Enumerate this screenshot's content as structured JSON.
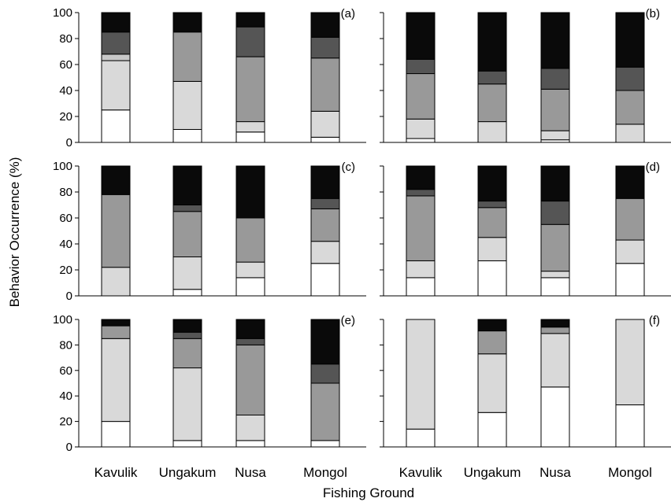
{
  "chart_data": {
    "type": "bar",
    "stacked": true,
    "xlabel": "Fishing Ground",
    "ylabel": "Behavior Occurrence (%)",
    "ylim": [
      0,
      100
    ],
    "yticks": [
      "0",
      "20",
      "40",
      "60",
      "80",
      "100"
    ],
    "categories": [
      "Kavulik",
      "Ungakum",
      "Nusa",
      "Mongol"
    ],
    "segment_colors": [
      "#ffffff",
      "#d9d9d9",
      "#c8c8c8",
      "#999999",
      "#555555",
      "#0a0a0a"
    ],
    "grid": false,
    "panels": [
      {
        "label": "(a)",
        "stacks": [
          [
            25,
            38,
            5,
            0,
            17,
            15
          ],
          [
            10,
            37,
            0,
            38,
            0,
            15
          ],
          [
            8,
            8,
            0,
            50,
            23,
            11
          ],
          [
            4,
            20,
            0,
            41,
            16,
            19
          ]
        ]
      },
      {
        "label": "(b)",
        "stacks": [
          [
            3,
            15,
            0,
            35,
            11,
            36
          ],
          [
            0,
            16,
            0,
            29,
            10,
            45
          ],
          [
            2,
            7,
            0,
            32,
            16,
            43
          ],
          [
            0,
            14,
            0,
            26,
            18,
            42
          ]
        ]
      },
      {
        "label": "(c)",
        "stacks": [
          [
            0,
            22,
            0,
            56,
            0,
            22
          ],
          [
            5,
            25,
            0,
            35,
            5,
            30
          ],
          [
            14,
            12,
            0,
            34,
            0,
            40
          ],
          [
            25,
            17,
            0,
            25,
            8,
            25
          ]
        ]
      },
      {
        "label": "(d)",
        "stacks": [
          [
            14,
            13,
            0,
            50,
            5,
            18
          ],
          [
            27,
            18,
            0,
            23,
            5,
            27
          ],
          [
            14,
            5,
            0,
            36,
            18,
            27
          ],
          [
            25,
            18,
            0,
            32,
            0,
            25
          ]
        ]
      },
      {
        "label": "(e)",
        "stacks": [
          [
            20,
            65,
            0,
            10,
            0,
            5
          ],
          [
            5,
            57,
            0,
            23,
            5,
            10
          ],
          [
            5,
            20,
            0,
            55,
            5,
            15
          ],
          [
            5,
            0,
            0,
            45,
            15,
            35
          ]
        ]
      },
      {
        "label": "(f)",
        "stacks": [
          [
            14,
            86,
            0,
            0,
            0,
            0
          ],
          [
            27,
            46,
            0,
            18,
            0,
            9
          ],
          [
            47,
            42,
            0,
            5,
            0,
            6
          ],
          [
            33,
            67,
            0,
            0,
            0,
            0
          ]
        ]
      }
    ]
  }
}
